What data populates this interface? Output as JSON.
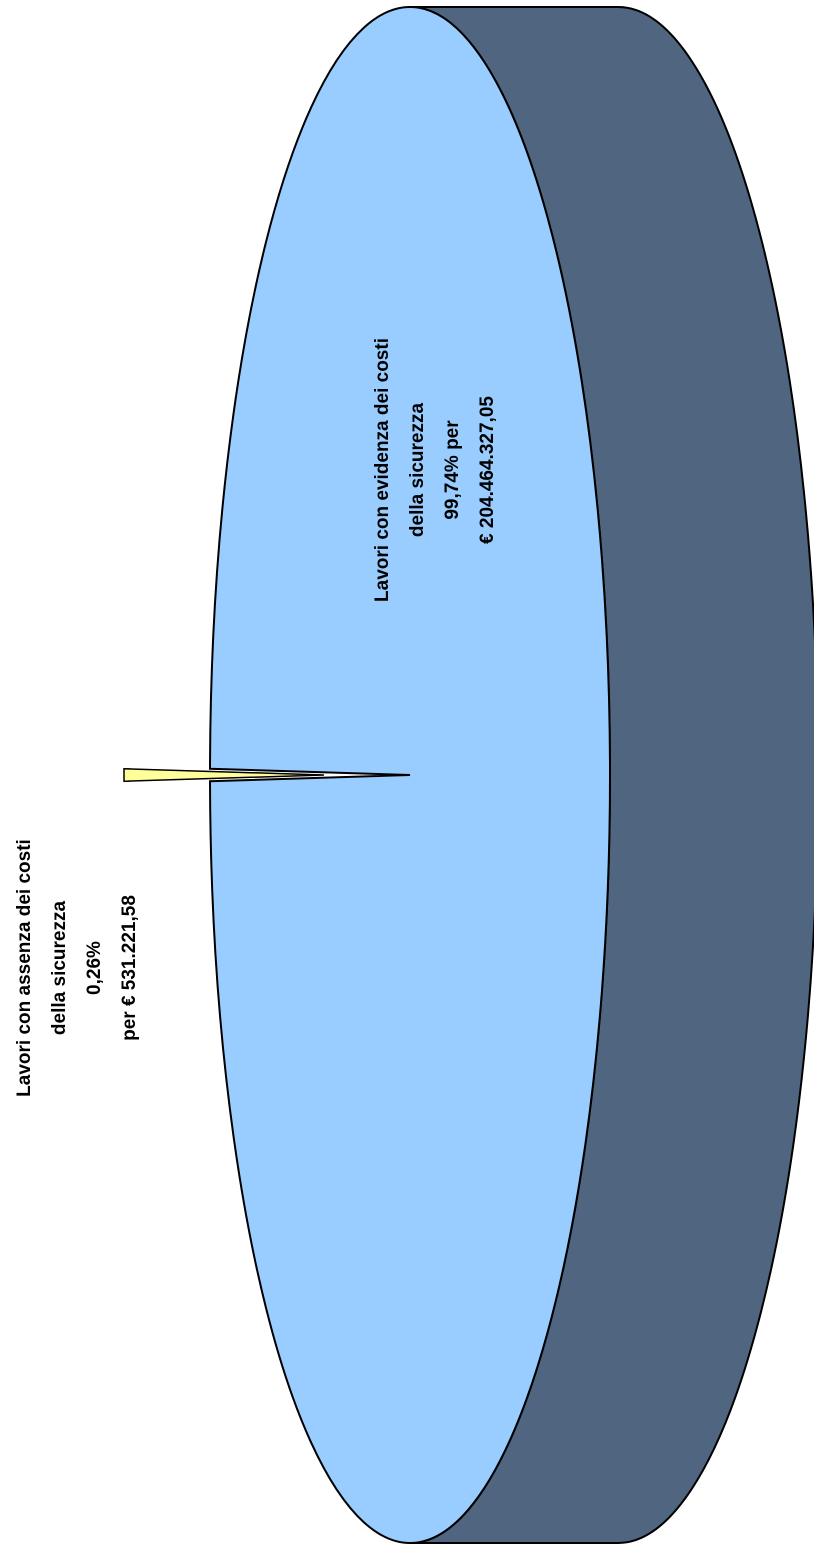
{
  "chart_data": {
    "type": "pie",
    "style": "3d-rotated",
    "slices": [
      {
        "key": "evidenza",
        "value": 99.74,
        "amount": 204464327.05,
        "color": "#99ccff",
        "side_color": "#4f6580",
        "label": [
          "Lavori con evidenza dei costi",
          "della sicurezza",
          "99,74% per",
          "€ 204.464.327,05"
        ]
      },
      {
        "key": "assenza",
        "value": 0.26,
        "amount": 531221.58,
        "color": "#ffff99",
        "side_color": "#6e6e40",
        "exploded": true,
        "label": [
          "Lavori con assenza dei costi",
          "della sicurezza",
          "0,26%",
          "per  € 531.221,58"
        ]
      }
    ],
    "legend": "none"
  }
}
